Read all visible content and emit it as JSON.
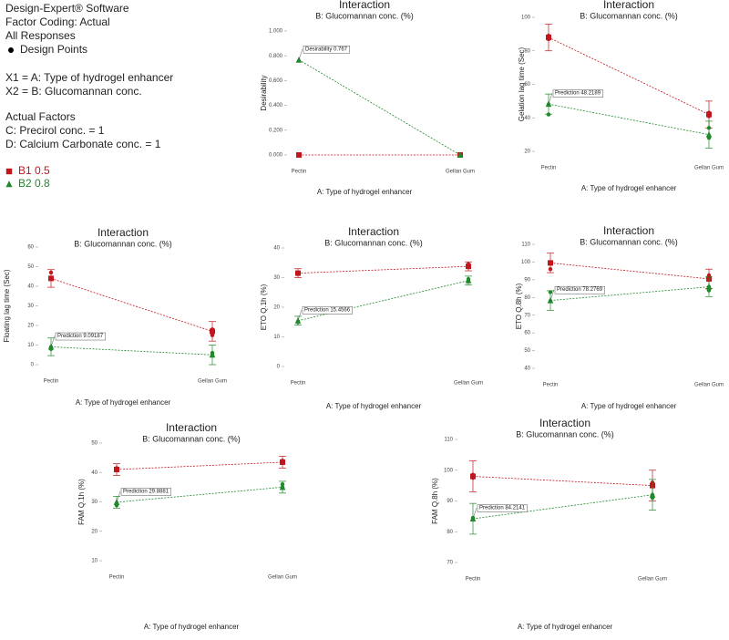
{
  "header": {
    "lines": [
      "Design-Expert® Software",
      "Factor Coding: Actual",
      "All Responses"
    ],
    "design_points": "Design Points",
    "factors": [
      "X1 = A: Type of hydrogel enhancer",
      "X2 = B: Glucomannan conc."
    ],
    "actual_title": "Actual Factors",
    "actual": [
      "C: Precirol conc. = 1",
      "D: Calcium Carbonate conc. = 1"
    ],
    "legend": [
      {
        "name": "B1 0.5",
        "color": "#c0161c"
      },
      {
        "name": "B2 0.8",
        "color": "#1e8a2a"
      }
    ]
  },
  "chart_data": [
    {
      "type": "line",
      "title": "Interaction",
      "subtitle": "B: Glucomannan conc. (%)",
      "xlabel": "A: Type of hydrogel enhancer",
      "ylabel": "Desirability",
      "categories": [
        "Pectin",
        "Gellan Gum"
      ],
      "ylim": [
        0,
        1
      ],
      "yticks": [
        {
          "value": 0,
          "label": "0.000"
        },
        {
          "value": 0.2,
          "label": "0.200"
        },
        {
          "value": 0.4,
          "label": "0.400"
        },
        {
          "value": 0.6,
          "label": "0.600"
        },
        {
          "value": 0.8,
          "label": "0.800"
        },
        {
          "value": 1,
          "label": "1.000"
        }
      ],
      "series": [
        {
          "color": "#c0161c",
          "values": [
            0,
            0
          ]
        },
        {
          "color": "#1e8a2a",
          "values": [
            0.767,
            0
          ]
        }
      ],
      "annotation": {
        "label": "Desirability  0.767",
        "series": 1,
        "index": 0
      }
    },
    {
      "type": "line",
      "title": "Interaction",
      "subtitle": "B: Glucomannan conc. (%)",
      "xlabel": "A: Type of hydrogel enhancer",
      "ylabel": "Gelation lag time (Sec)",
      "categories": [
        "Pectin",
        "Gellan Gum"
      ],
      "ylim": [
        20,
        100
      ],
      "yticks": [
        20,
        40,
        60,
        80,
        100
      ],
      "series": [
        {
          "color": "#c0161c",
          "values": [
            88,
            42
          ],
          "errors": [
            8,
            8
          ],
          "points": [
            [
              89,
              87
            ],
            [
              43,
              41
            ]
          ]
        },
        {
          "color": "#1e8a2a",
          "values": [
            48.2189,
            30
          ],
          "errors": [
            6,
            8
          ],
          "points": [
            [
              48,
              42
            ],
            [
              34,
              28
            ]
          ]
        }
      ],
      "annotation": {
        "label": "Prediction   48.2189",
        "series": 1,
        "index": 0
      }
    },
    {
      "type": "line",
      "title": "Interaction",
      "subtitle": "B: Glucomannan conc. (%)",
      "xlabel": "A: Type of hydrogel enhancer",
      "ylabel": "Floating lag time (Sec)",
      "categories": [
        "Pectin",
        "Gellan Gum"
      ],
      "ylim": [
        0,
        60
      ],
      "yticks": [
        0,
        10,
        20,
        30,
        40,
        50,
        60
      ],
      "series": [
        {
          "color": "#c0161c",
          "values": [
            44,
            17
          ],
          "errors": [
            4.5,
            5
          ],
          "points": [
            [
              47,
              44
            ],
            [
              18,
              15
            ]
          ]
        },
        {
          "color": "#1e8a2a",
          "values": [
            9.09187,
            5
          ],
          "errors": [
            4.5,
            5
          ],
          "points": [
            [
              9,
              8
            ],
            [
              6,
              5
            ]
          ]
        }
      ],
      "annotation": {
        "label": "Prediction   9.09187",
        "series": 1,
        "index": 0
      }
    },
    {
      "type": "line",
      "title": "Interaction",
      "subtitle": "B: Glucomannan conc. (%)",
      "xlabel": "A: Type of hydrogel enhancer",
      "ylabel": "ETO Q.1h (%)",
      "categories": [
        "Pectin",
        "Gellan Gum"
      ],
      "ylim": [
        0,
        40
      ],
      "yticks": [
        0,
        10,
        20,
        30,
        40
      ],
      "series": [
        {
          "color": "#c0161c",
          "values": [
            31.5,
            33.8
          ],
          "errors": [
            1.5,
            1.5
          ],
          "points": [
            [
              31.5,
              31.5
            ],
            [
              34.5,
              33.5
            ]
          ]
        },
        {
          "color": "#1e8a2a",
          "values": [
            15.4566,
            29
          ],
          "errors": [
            1.5,
            1.5
          ],
          "points": [
            [
              15,
              15
            ],
            [
              29.5,
              28.8
            ]
          ]
        }
      ],
      "annotation": {
        "label": "Prediction   15.4566",
        "series": 1,
        "index": 0
      }
    },
    {
      "type": "line",
      "title": "Interaction",
      "subtitle": "B: Glucomannan conc. (%)",
      "xlabel": "A: Type of hydrogel enhancer",
      "ylabel": "ETO Q.8h (%)",
      "categories": [
        "Pectin",
        "Gellan Gum"
      ],
      "ylim": [
        40,
        110
      ],
      "yticks": [
        40,
        50,
        60,
        70,
        80,
        90,
        100,
        110
      ],
      "series": [
        {
          "color": "#c0161c",
          "values": [
            99.5,
            90.5
          ],
          "errors": [
            5.5,
            5.5
          ],
          "points": [
            [
              99.5,
              96
            ],
            [
              92.5,
              90
            ]
          ]
        },
        {
          "color": "#1e8a2a",
          "values": [
            78.2769,
            86
          ],
          "errors": [
            5.5,
            5.5
          ],
          "points": [
            [
              83,
              78
            ],
            [
              86,
              84
            ]
          ]
        }
      ],
      "annotation": {
        "label": "Prediction   78.2769",
        "series": 1,
        "index": 0
      }
    },
    {
      "type": "line",
      "title": "Interaction",
      "subtitle": "B: Glucomannan conc. (%)",
      "xlabel": "A: Type of hydrogel enhancer",
      "ylabel": "FAM Q.1h (%)",
      "categories": [
        "Pectin",
        "Gellan Gum"
      ],
      "ylim": [
        10,
        50
      ],
      "yticks": [
        10,
        20,
        30,
        40,
        50
      ],
      "series": [
        {
          "color": "#c0161c",
          "values": [
            41,
            43.5
          ],
          "errors": [
            2,
            2
          ],
          "points": [
            [
              41.5,
              41
            ],
            [
              44,
              43.5
            ]
          ]
        },
        {
          "color": "#1e8a2a",
          "values": [
            29.8881,
            35
          ],
          "errors": [
            2,
            2
          ],
          "points": [
            [
              29.5,
              28.8
            ],
            [
              36,
              35
            ]
          ]
        }
      ],
      "annotation": {
        "label": "Prediction   29.8881",
        "series": 1,
        "index": 0
      }
    },
    {
      "type": "line",
      "title": "Interaction",
      "subtitle": "B: Glucomannan conc. (%)",
      "xlabel": "A: Type of hydrogel enhancer",
      "ylabel": "FAM Q.8h (%)",
      "categories": [
        "Pectin",
        "Gellan Gum"
      ],
      "ylim": [
        70,
        110
      ],
      "yticks": [
        70,
        80,
        90,
        100,
        110
      ],
      "series": [
        {
          "color": "#c0161c",
          "values": [
            98,
            95
          ],
          "errors": [
            5,
            5
          ],
          "points": [
            [
              98.5,
              97.5
            ],
            [
              96,
              95
            ]
          ]
        },
        {
          "color": "#1e8a2a",
          "values": [
            84.2141,
            92
          ],
          "errors": [
            5,
            5
          ],
          "points": [
            [
              84.5,
              84
            ],
            [
              92,
              91
            ]
          ]
        }
      ],
      "annotation": {
        "label": "Prediction   84.2141",
        "series": 1,
        "index": 0
      }
    }
  ]
}
